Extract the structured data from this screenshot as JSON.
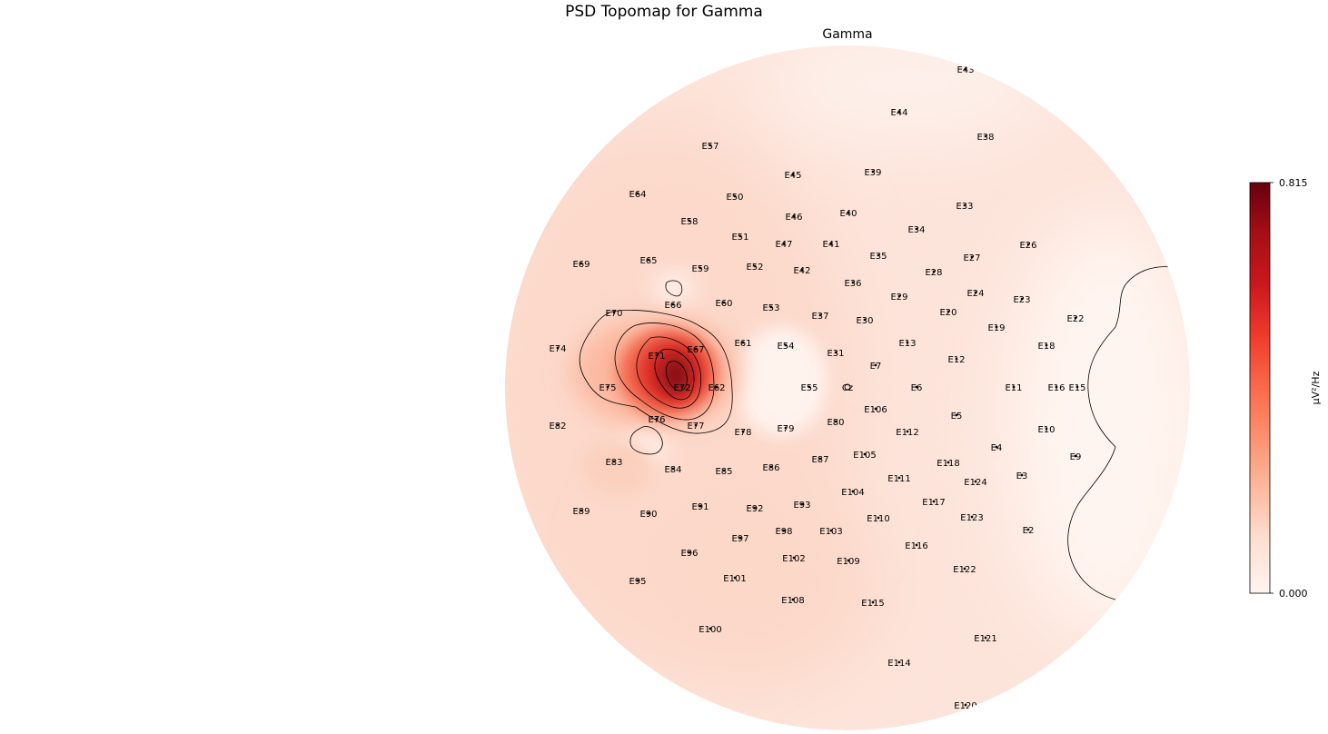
{
  "figure": {
    "suptitle": "PSD Topomap for Gamma"
  },
  "chart_data": {
    "type": "heatmap",
    "subtype": "eeg-topomap",
    "title": "Gamma",
    "colormap": "Reds",
    "colorbar": {
      "label": "µV²/Hz",
      "min": 0.0,
      "max": 0.815,
      "tick_labels": [
        "0.815",
        "0.000"
      ],
      "colors": [
        "#fff5f0",
        "#fee0d2",
        "#fcbba1",
        "#fc9272",
        "#fb6a4a",
        "#ef3b2c",
        "#cb181d",
        "#a50f15",
        "#67000d"
      ]
    },
    "hotspot": {
      "near_electrodes": [
        "E71",
        "E72",
        "E67",
        "E66"
      ],
      "peak_value": 0.815
    },
    "electrodes": [
      "E43",
      "E44",
      "E38",
      "E57",
      "E45",
      "E39",
      "E64",
      "E50",
      "E46",
      "E40",
      "E33",
      "E58",
      "E34",
      "E51",
      "E47",
      "E41",
      "E26",
      "E35",
      "E27",
      "E69",
      "E65",
      "E59",
      "E52",
      "E42",
      "E28",
      "E36",
      "E24",
      "E29",
      "E23",
      "E66",
      "E60",
      "E53",
      "E70",
      "E37",
      "E30",
      "E20",
      "E19",
      "E22",
      "E61",
      "E54",
      "E13",
      "E74",
      "E71",
      "E67",
      "E31",
      "E18",
      "E12",
      "E7",
      "E75",
      "E72",
      "E62",
      "E55",
      "Cz",
      "E6",
      "E11",
      "E16",
      "E15",
      "E106",
      "E76",
      "E77",
      "E82",
      "E78",
      "E79",
      "E80",
      "E112",
      "E5",
      "E10",
      "E4",
      "E105",
      "E9",
      "E83",
      "E87",
      "E84",
      "E85",
      "E86",
      "E118",
      "E111",
      "E3",
      "E124",
      "E104",
      "E93",
      "E91",
      "E117",
      "E92",
      "E89",
      "E90",
      "E110",
      "E123",
      "E98",
      "E103",
      "E2",
      "E97",
      "E116",
      "E96",
      "E102",
      "E109",
      "E122",
      "E95",
      "E101",
      "E115",
      "E108",
      "E100",
      "E121",
      "E114",
      "E120"
    ]
  }
}
